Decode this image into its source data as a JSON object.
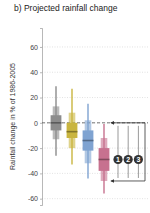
{
  "chart_data": {
    "type": "box",
    "title": "b) Projected rainfall change",
    "y_label": "Rainfall change in % of 1986-2005",
    "categories": [
      null,
      null,
      null,
      null
    ],
    "colors": [
      "#8c8c8c",
      "#c9b53f",
      "#7fa3d1",
      "#c7718f"
    ],
    "boxes": [
      {
        "whisker_low": -26,
        "low": -13,
        "q1": -6,
        "median": 0,
        "q3": 6,
        "high": 13,
        "whisker_high": 29
      },
      {
        "whisker_low": -33,
        "low": -20,
        "q1": -12,
        "median": -7,
        "q3": 0,
        "high": 8,
        "whisker_high": 27
      },
      {
        "whisker_low": -44,
        "low": -32,
        "q1": -22,
        "median": -14,
        "q3": -6,
        "high": 2,
        "whisker_high": 15
      },
      {
        "whisker_low": -56,
        "low": -46,
        "q1": -38,
        "median": -29,
        "q3": -20,
        "high": -12,
        "whisker_high": -1
      }
    ],
    "reference_line": 0,
    "annotations": [
      "1",
      "2",
      "3"
    ],
    "ylim": [
      -65,
      75
    ],
    "yticks": [
      -60,
      -40,
      -20,
      0,
      20,
      40,
      60
    ],
    "grid": true
  }
}
